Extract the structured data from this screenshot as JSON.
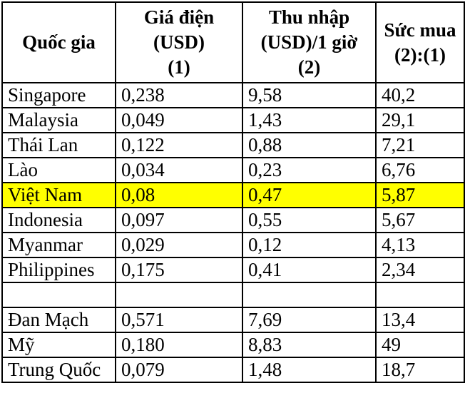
{
  "figure": {
    "columns": [
      {
        "id": "country",
        "label": "Quốc gia"
      },
      {
        "id": "price",
        "label": "Giá điện\n(USD)\n(1)"
      },
      {
        "id": "income",
        "label": "Thu nhập\n(USD)/1 giờ\n(2)"
      },
      {
        "id": "power",
        "label": "Sức mua\n(2):(1)"
      }
    ],
    "rows": [
      {
        "country": "Singapore",
        "price": "0,238",
        "income": "9,58",
        "power": "40,2",
        "highlight": false
      },
      {
        "country": "Malaysia",
        "price": "0,049",
        "income": "1,43",
        "power": "29,1",
        "highlight": false
      },
      {
        "country": "Thái Lan",
        "price": "0,122",
        "income": "0,88",
        "power": "7,21",
        "highlight": false
      },
      {
        "country": "Lào",
        "price": "0,034",
        "income": "0,23",
        "power": "6,76",
        "highlight": false
      },
      {
        "country": "Việt Nam",
        "price": "0,08",
        "income": "0,47",
        "power": "5,87",
        "highlight": true
      },
      {
        "country": "Indonesia",
        "price": "0,097",
        "income": "0,55",
        "power": "5,67",
        "highlight": false
      },
      {
        "country": "Myanmar",
        "price": "0,029",
        "income": "0,12",
        "power": "4,13",
        "highlight": false
      },
      {
        "country": "Philippines",
        "price": "0,175",
        "income": "0,41",
        "power": "2,34",
        "highlight": false
      },
      {
        "country": "",
        "price": "",
        "income": "",
        "power": "",
        "highlight": false
      },
      {
        "country": "Đan Mạch",
        "price": "0,571",
        "income": "7,69",
        "power": "13,4",
        "highlight": false
      },
      {
        "country": "Mỹ",
        "price": "0,180",
        "income": "8,83",
        "power": "49",
        "highlight": false
      },
      {
        "country": "Trung Quốc",
        "price": "0,079",
        "income": "1,48",
        "power": "18,7",
        "highlight": false
      }
    ],
    "colors": {
      "highlight_row": "#ffff00",
      "border": "#000000",
      "text": "#000000",
      "background": "#ffffff"
    }
  },
  "chart_data": {
    "type": "table",
    "columns": [
      "Quốc gia",
      "Giá điện (USD) (1)",
      "Thu nhập (USD)/1 giờ (2)",
      "Sức mua (2):(1)"
    ],
    "rows": [
      [
        "Singapore",
        "0,238",
        "9,58",
        "40,2"
      ],
      [
        "Malaysia",
        "0,049",
        "1,43",
        "29,1"
      ],
      [
        "Thái Lan",
        "0,122",
        "0,88",
        "7,21"
      ],
      [
        "Lào",
        "0,034",
        "0,23",
        "6,76"
      ],
      [
        "Việt Nam",
        "0,08",
        "0,47",
        "5,87"
      ],
      [
        "Indonesia",
        "0,097",
        "0,55",
        "5,67"
      ],
      [
        "Myanmar",
        "0,029",
        "0,12",
        "4,13"
      ],
      [
        "Philippines",
        "0,175",
        "0,41",
        "2,34"
      ],
      [
        "",
        "",
        "",
        ""
      ],
      [
        "Đan Mạch",
        "0,571",
        "7,69",
        "13,4"
      ],
      [
        "Mỹ",
        "0,180",
        "8,83",
        "49"
      ],
      [
        "Trung Quốc",
        "0,079",
        "1,48",
        "18,7"
      ]
    ],
    "highlighted_row": "Việt Nam"
  }
}
